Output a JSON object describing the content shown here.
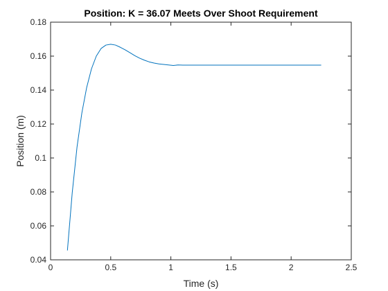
{
  "chart_data": {
    "type": "line",
    "title": "Position: K = 36.07 Meets Over Shoot Requirement",
    "xlabel": "Time (s)",
    "ylabel": "Position (m)",
    "xlim": [
      0,
      2.5
    ],
    "ylim": [
      0.04,
      0.18
    ],
    "xticks": [
      0,
      0.5,
      1,
      1.5,
      2,
      2.5
    ],
    "xtick_labels": [
      "0",
      "0.5",
      "1",
      "1.5",
      "2",
      "2.5"
    ],
    "yticks": [
      0.04,
      0.06,
      0.08,
      0.1,
      0.12,
      0.14,
      0.16,
      0.18
    ],
    "ytick_labels": [
      "0.04",
      "0.06",
      "0.08",
      "0.1",
      "0.12",
      "0.14",
      "0.16",
      "0.18"
    ],
    "grid": false,
    "series": [
      {
        "color": "#0072BD",
        "x": [
          0.14,
          0.18,
          0.22,
          0.26,
          0.3,
          0.34,
          0.38,
          0.42,
          0.46,
          0.5,
          0.54,
          0.58,
          0.62,
          0.66,
          0.7,
          0.74,
          0.78,
          0.82,
          0.86,
          0.9,
          0.94,
          0.98,
          1.02,
          1.06,
          1.1,
          1.2,
          1.4,
          1.6,
          1.8,
          2.0,
          2.25
        ],
        "y": [
          0.0455,
          0.0795,
          0.1065,
          0.1265,
          0.1415,
          0.1525,
          0.16,
          0.1645,
          0.1665,
          0.167,
          0.1665,
          0.1652,
          0.1637,
          0.162,
          0.1603,
          0.1588,
          0.1576,
          0.1566,
          0.1559,
          0.1554,
          0.1551,
          0.1548,
          0.1545,
          0.1548,
          0.1547,
          0.1547,
          0.1547,
          0.1547,
          0.1547,
          0.1547,
          0.1547
        ]
      }
    ]
  }
}
